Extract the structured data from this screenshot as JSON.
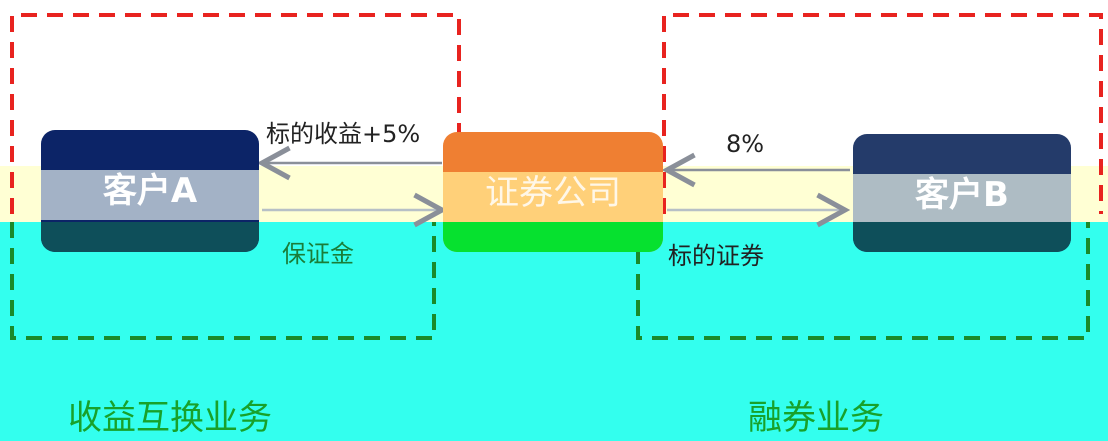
{
  "nodes": {
    "client_a": "客户A",
    "securities_company": "证券公司",
    "client_b": "客户B"
  },
  "edges": {
    "underlying_return": "标的收益+5%",
    "margin": "保证金",
    "rate": "8%",
    "underlying_securities": "标的证券"
  },
  "groups": {
    "left": "收益互换业务",
    "right": "融券业务"
  },
  "colors": {
    "red_dash": "#e8231f",
    "green_dash": "#1a8a2a",
    "client_a": "#0c2467",
    "securities_company": "#ef7f32",
    "client_b": "#243b6a"
  }
}
